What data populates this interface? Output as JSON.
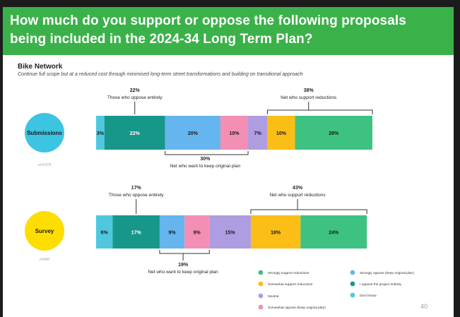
{
  "header": {
    "line1": "How much do you support or oppose the following proposals",
    "line2": "being included in the 2024-34 Long Term Plan?"
  },
  "section": {
    "title": "Bike Network",
    "subtitle": "Continue full scope but at a reduced cost through minimised long-term street transformations and building on transitional approach"
  },
  "page_number": "40",
  "colors": {
    "header": "#3bb14a",
    "dont_know": "#4fc8df",
    "oppose_entirely": "#16978a",
    "strongly_oppose": "#65b5ee",
    "somewhat_oppose": "#f38fb5",
    "neutral": "#ae9de0",
    "somewhat_support": "#fbbe16",
    "strongly_support": "#3ec282",
    "submissions_circle": "#3cc4e2",
    "survey_circle": "#fedd00"
  },
  "chart_data": {
    "type": "bar",
    "orientation": "horizontal",
    "stacked": true,
    "categories": [
      "Submissions",
      "Survey"
    ],
    "sample_sizes": [
      "n=2,573",
      "n=500"
    ],
    "series": [
      {
        "name": "Don't know",
        "color_key": "dont_know",
        "values": [
          3,
          6
        ]
      },
      {
        "name": "I oppose the project entirely",
        "color_key": "oppose_entirely",
        "values": [
          22,
          17
        ]
      },
      {
        "name": "Strongly oppose (keep original plan)",
        "color_key": "strongly_oppose",
        "values": [
          20,
          9
        ]
      },
      {
        "name": "Somewhat oppose (keep original plan)",
        "color_key": "somewhat_oppose",
        "values": [
          10,
          9
        ]
      },
      {
        "name": "Neutral",
        "color_key": "neutral",
        "values": [
          7,
          15
        ]
      },
      {
        "name": "Somewhat support reductions",
        "color_key": "somewhat_support",
        "values": [
          10,
          18
        ]
      },
      {
        "name": "Strongly support reductions",
        "color_key": "strongly_support",
        "values": [
          28,
          24
        ]
      }
    ],
    "annotations": [
      {
        "oppose_entirely": {
          "value": "22%",
          "label": "Those who oppose entirely"
        },
        "support": {
          "value": "38%",
          "label": "Net who support reductions"
        },
        "keep": {
          "value": "30%",
          "label": "Net who want to keep original plan"
        }
      },
      {
        "oppose_entirely": {
          "value": "17%",
          "label": "Those who oppose entirely"
        },
        "support": {
          "value": "43%",
          "label": "Net who support reductions"
        },
        "keep": {
          "value": "19%",
          "label": "Net who want to keep original plan"
        }
      }
    ],
    "legend": [
      {
        "label": "Strongly support reductions",
        "color_key": "strongly_support"
      },
      {
        "label": "Somewhat support reductions",
        "color_key": "somewhat_support"
      },
      {
        "label": "Neutral",
        "color_key": "neutral"
      },
      {
        "label": "Somewhat oppose (keep original plan)",
        "color_key": "somewhat_oppose"
      },
      {
        "label": "Strongly oppose (keep original plan)",
        "color_key": "strongly_oppose"
      },
      {
        "label": "I oppose the project entirely",
        "color_key": "oppose_entirely"
      },
      {
        "label": "Don't know",
        "color_key": "dont_know"
      }
    ],
    "legend_position": "bottom-right",
    "grid": false
  }
}
